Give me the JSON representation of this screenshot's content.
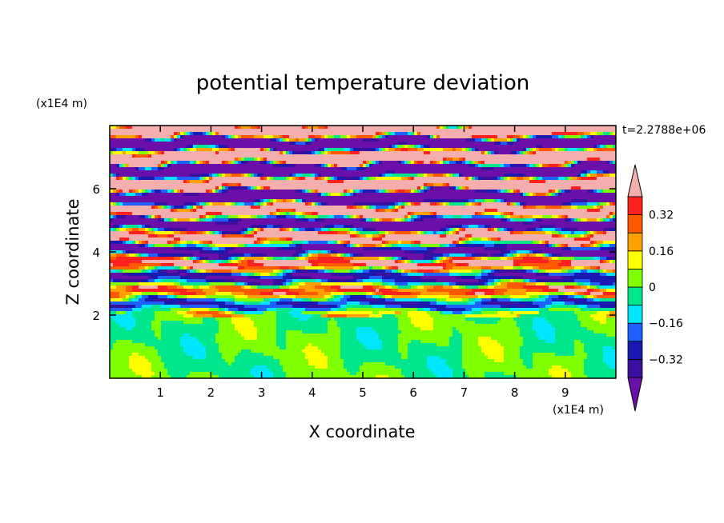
{
  "chart_data": {
    "type": "heatmap",
    "title": "potential temperature deviation",
    "xlabel": "X coordinate",
    "ylabel": "Z coordinate",
    "x_unit": "(x1E4 m)",
    "y_unit": "(x1E4 m)",
    "time_label": "t=2.2788e+06",
    "xlim": [
      0,
      10
    ],
    "ylim": [
      0,
      8
    ],
    "x_ticks": [
      1,
      2,
      3,
      4,
      5,
      6,
      7,
      8,
      9
    ],
    "y_ticks": [
      2,
      4,
      6
    ],
    "colorbar": {
      "levels": [
        -0.4,
        -0.32,
        -0.24,
        -0.16,
        -0.08,
        0,
        0.08,
        0.16,
        0.24,
        0.32,
        0.4
      ],
      "colors": [
        "#3c0f9e",
        "#1a1ab0",
        "#2060ff",
        "#00e6ff",
        "#00e68c",
        "#80ff00",
        "#ffff00",
        "#ffa000",
        "#ff5a00",
        "#ff2020"
      ],
      "under_color": "#6a0fa8",
      "over_color": "#f4aeae",
      "labels": [
        "0.32",
        "0.16",
        "0",
        "−0.16",
        "−0.32"
      ],
      "label_values": [
        0.32,
        0.16,
        0,
        -0.16,
        -0.32
      ]
    },
    "grid": false
  }
}
